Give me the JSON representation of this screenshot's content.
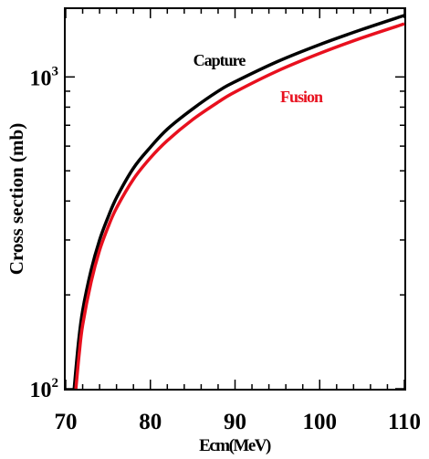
{
  "chart_data": {
    "type": "line",
    "xlabel": "Ecm(MeV)",
    "ylabel": "Cross section (mb)",
    "x_scale": "linear",
    "y_scale": "log",
    "xlim": [
      70,
      110
    ],
    "ylim": [
      100,
      1650
    ],
    "x_ticks": [
      {
        "value": 70,
        "label": "70"
      },
      {
        "value": 80,
        "label": "80"
      },
      {
        "value": 90,
        "label": "90"
      },
      {
        "value": 100,
        "label": "100"
      },
      {
        "value": 110,
        "label": "110"
      }
    ],
    "y_ticks_major": [
      {
        "value": 100,
        "base": "10",
        "exp": "2"
      },
      {
        "value": 1000,
        "base": "10",
        "exp": "3"
      }
    ],
    "grid": false,
    "series": [
      {
        "name": "Capture",
        "color": "#000000",
        "x": [
          71.0,
          71.5,
          72,
          73,
          74,
          75,
          76,
          78,
          80,
          82,
          85,
          88,
          90,
          95,
          100,
          105,
          110
        ],
        "y": [
          100,
          140,
          178,
          240,
          300,
          355,
          410,
          510,
          595,
          680,
          790,
          900,
          965,
          1120,
          1270,
          1420,
          1575
        ]
      },
      {
        "name": "Fusion",
        "color": "#e8101e",
        "x": [
          71.2,
          71.6,
          72,
          73,
          74,
          75,
          76,
          78,
          80,
          82,
          85,
          88,
          90,
          95,
          100,
          105,
          110
        ],
        "y": [
          100,
          130,
          160,
          220,
          278,
          330,
          380,
          470,
          550,
          625,
          730,
          830,
          895,
          1045,
          1190,
          1335,
          1480
        ]
      }
    ]
  }
}
